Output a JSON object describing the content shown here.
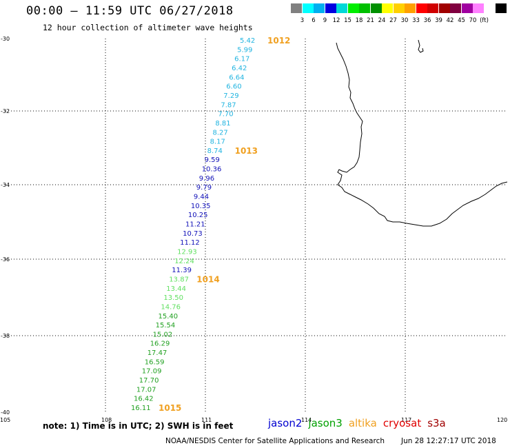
{
  "header": {
    "title": "00:00 – 11:59 UTC 06/27/2018",
    "subtitle": "12 hour collection of altimeter wave heights"
  },
  "legend": {
    "unit": "(ft)",
    "colors": [
      "#808080",
      "#00ffff",
      "#00b0f0",
      "#0000e0",
      "#00d8d8",
      "#00ee00",
      "#00c000",
      "#009000",
      "#ffff00",
      "#ffd000",
      "#ffa000",
      "#ff0000",
      "#d00000",
      "#a00000",
      "#800040",
      "#a000a0",
      "#ff80ff",
      "#ffffff",
      "#000000"
    ],
    "labels": [
      "3",
      "6",
      "9",
      "12",
      "15",
      "18",
      "21",
      "24",
      "27",
      "30",
      "33",
      "36",
      "39",
      "42",
      "45",
      "70"
    ]
  },
  "map": {
    "lat_labels": [
      "-30",
      "-32",
      "-34",
      "-36",
      "-38",
      "-40"
    ],
    "lon_labels": [
      "105",
      "108",
      "111",
      "114",
      "117",
      "120"
    ],
    "lat_range": [
      -40,
      -30
    ],
    "lon_range": [
      105,
      120
    ],
    "grid": true
  },
  "track": [
    {
      "v": "5.42",
      "c": "#20b4e0"
    },
    {
      "v": "5.99",
      "c": "#20b4e0"
    },
    {
      "v": "6.17",
      "c": "#20b4e0"
    },
    {
      "v": "6.42",
      "c": "#20b4e0"
    },
    {
      "v": "6.64",
      "c": "#20b4e0"
    },
    {
      "v": "6.60",
      "c": "#20b4e0"
    },
    {
      "v": "7.29",
      "c": "#20b4e0"
    },
    {
      "v": "7.87",
      "c": "#20b4e0"
    },
    {
      "v": "7.70",
      "c": "#20b4e0"
    },
    {
      "v": "8.81",
      "c": "#20b4e0"
    },
    {
      "v": "8.27",
      "c": "#20b4e0"
    },
    {
      "v": "8.17",
      "c": "#20b4e0"
    },
    {
      "v": "8.74",
      "c": "#20b4e0"
    },
    {
      "v": "9.59",
      "c": "#1010b8"
    },
    {
      "v": "10.36",
      "c": "#1010b8"
    },
    {
      "v": "9.96",
      "c": "#1010b8"
    },
    {
      "v": "9.79",
      "c": "#1010b8"
    },
    {
      "v": "9.44",
      "c": "#1010b8"
    },
    {
      "v": "10.35",
      "c": "#1010b8"
    },
    {
      "v": "10.25",
      "c": "#1010b8"
    },
    {
      "v": "11.21",
      "c": "#1010b8"
    },
    {
      "v": "10.73",
      "c": "#1010b8"
    },
    {
      "v": "11.12",
      "c": "#1010b8"
    },
    {
      "v": "12.93",
      "c": "#60e060"
    },
    {
      "v": "12.24",
      "c": "#60e060"
    },
    {
      "v": "11.39",
      "c": "#1010b8"
    },
    {
      "v": "13.87",
      "c": "#60e060"
    },
    {
      "v": "13.44",
      "c": "#60e060"
    },
    {
      "v": "13.50",
      "c": "#60e060"
    },
    {
      "v": "14.76",
      "c": "#60e060"
    },
    {
      "v": "15.40",
      "c": "#20a020"
    },
    {
      "v": "15.54",
      "c": "#20a020"
    },
    {
      "v": "15.02",
      "c": "#20a020"
    },
    {
      "v": "16.29",
      "c": "#20a020"
    },
    {
      "v": "17.47",
      "c": "#20a020"
    },
    {
      "v": "16.59",
      "c": "#20a020"
    },
    {
      "v": "17.09",
      "c": "#20a020"
    },
    {
      "v": "17.70",
      "c": "#20a020"
    },
    {
      "v": "17.07",
      "c": "#20a020"
    },
    {
      "v": "16.42",
      "c": "#20a020"
    },
    {
      "v": "16.11",
      "c": "#20a020"
    }
  ],
  "time_labels": [
    {
      "text": "1012",
      "row": 0
    },
    {
      "text": "1013",
      "row": 12
    },
    {
      "text": "1014",
      "row": 26
    },
    {
      "text": "1015",
      "row": 40
    }
  ],
  "time_label_color": "#f0a020",
  "note": "note: 1) Time is in UTC; 2) SWH is in feet",
  "satellites": [
    {
      "name": "jason2",
      "color": "#0000d0"
    },
    {
      "name": "jason3",
      "color": "#00a000"
    },
    {
      "name": "altika",
      "color": "#f0a020"
    },
    {
      "name": "cryosat",
      "color": "#e00000"
    },
    {
      "name": "s3a",
      "color": "#a00000"
    }
  ],
  "footer_left": "NOAA/NESDIS Center for Satellite Applications and Research",
  "footer_right": "Jun 28 12:27:17 UTC 2018"
}
